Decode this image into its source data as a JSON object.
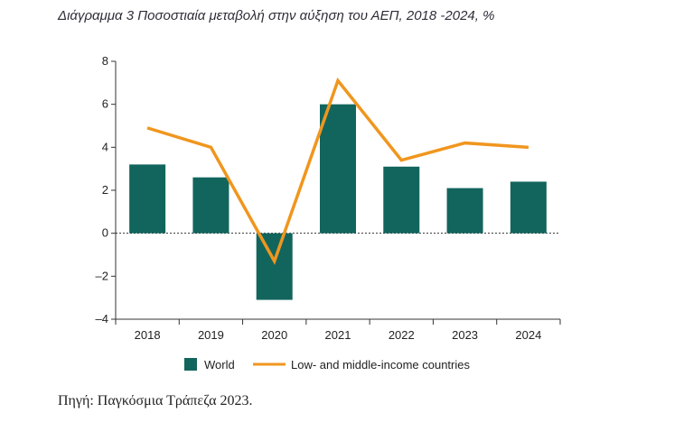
{
  "title": "Διάγραμμα  3 Ποσοστιαία μεταβολή στην αύξηση του ΑΕΠ, 2018 -2024, %",
  "source": "Πηγή: Παγκόσμια Τράπεζα 2023.",
  "chart_data": {
    "type": "bar",
    "categories": [
      "2018",
      "2019",
      "2020",
      "2021",
      "2022",
      "2023",
      "2024"
    ],
    "series": [
      {
        "name": "World",
        "type": "bar",
        "color": "#12655d",
        "values": [
          3.2,
          2.6,
          -3.1,
          6.0,
          3.1,
          2.1,
          2.4
        ]
      },
      {
        "name": "Low- and middle-income countries",
        "type": "line",
        "color": "#f0961e",
        "values": [
          4.9,
          4.0,
          -1.3,
          7.1,
          3.4,
          4.2,
          4.0
        ]
      }
    ],
    "ylim": [
      -4,
      8
    ],
    "yticks": [
      "8",
      "6",
      "4",
      "2",
      "0",
      "–2",
      "–4"
    ],
    "ytick_values": [
      8,
      6,
      4,
      2,
      0,
      -2,
      -4
    ],
    "zero_line": "dashed",
    "grid": false,
    "legend": "bottom"
  }
}
